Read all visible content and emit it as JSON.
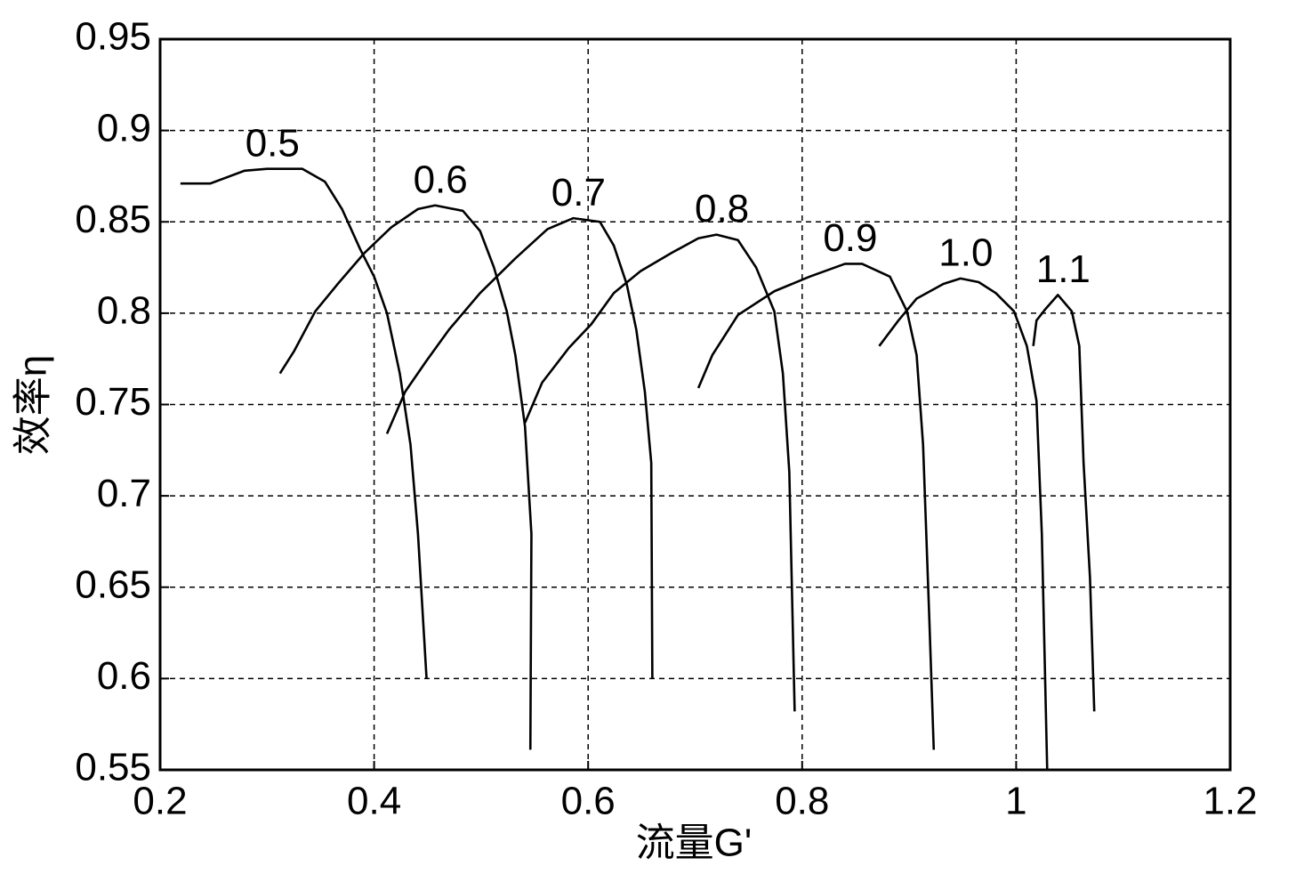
{
  "chart_data": {
    "type": "line",
    "xlabel": "流量G'",
    "ylabel": "效率η",
    "xlim": [
      0.2,
      1.2
    ],
    "xticks": [
      0.2,
      0.4,
      0.6,
      0.8,
      1,
      1.2
    ],
    "ylim": [
      0.55,
      0.95
    ],
    "yticks": [
      0.55,
      0.6,
      0.65,
      0.7,
      0.75,
      0.8,
      0.85,
      0.9,
      0.95
    ],
    "grid": true,
    "series": [
      {
        "name": "0.5",
        "color": "#000000",
        "x": [
          0.219,
          0.247,
          0.279,
          0.3,
          0.333,
          0.354,
          0.37,
          0.387,
          0.4,
          0.412,
          0.424,
          0.434,
          0.441,
          0.449
        ],
        "values": [
          0.871,
          0.871,
          0.878,
          0.879,
          0.879,
          0.872,
          0.857,
          0.835,
          0.82,
          0.8,
          0.767,
          0.728,
          0.679,
          0.6
        ]
      },
      {
        "name": "0.6",
        "color": "#000000",
        "x": [
          0.312,
          0.325,
          0.345,
          0.366,
          0.391,
          0.416,
          0.441,
          0.457,
          0.483,
          0.499,
          0.512,
          0.524,
          0.532,
          0.541,
          0.547,
          0.546
        ],
        "values": [
          0.767,
          0.779,
          0.801,
          0.816,
          0.833,
          0.847,
          0.857,
          0.859,
          0.856,
          0.845,
          0.825,
          0.801,
          0.777,
          0.738,
          0.679,
          0.561
        ]
      },
      {
        "name": "0.7",
        "color": "#000000",
        "x": [
          0.412,
          0.429,
          0.449,
          0.47,
          0.499,
          0.532,
          0.562,
          0.586,
          0.611,
          0.624,
          0.636,
          0.645,
          0.653,
          0.659,
          0.66
        ],
        "values": [
          0.734,
          0.757,
          0.774,
          0.791,
          0.811,
          0.83,
          0.846,
          0.852,
          0.85,
          0.837,
          0.816,
          0.791,
          0.757,
          0.718,
          0.6
        ]
      },
      {
        "name": "0.8",
        "color": "#000000",
        "x": [
          0.541,
          0.557,
          0.582,
          0.603,
          0.624,
          0.649,
          0.678,
          0.703,
          0.72,
          0.74,
          0.757,
          0.774,
          0.782,
          0.788,
          0.793
        ],
        "values": [
          0.74,
          0.762,
          0.781,
          0.794,
          0.811,
          0.823,
          0.833,
          0.841,
          0.843,
          0.84,
          0.825,
          0.801,
          0.767,
          0.713,
          0.582
        ]
      },
      {
        "name": "0.9",
        "color": "#000000",
        "x": [
          0.703,
          0.716,
          0.74,
          0.774,
          0.807,
          0.84,
          0.856,
          0.882,
          0.898,
          0.907,
          0.913,
          0.919,
          0.923
        ],
        "values": [
          0.759,
          0.777,
          0.799,
          0.812,
          0.82,
          0.827,
          0.827,
          0.82,
          0.801,
          0.777,
          0.728,
          0.63,
          0.561
        ]
      },
      {
        "name": "1.0",
        "color": "#000000",
        "x": [
          0.872,
          0.89,
          0.907,
          0.932,
          0.948,
          0.965,
          0.981,
          0.998,
          1.01,
          1.019,
          1.024,
          1.029
        ],
        "values": [
          0.782,
          0.796,
          0.808,
          0.816,
          0.819,
          0.817,
          0.811,
          0.801,
          0.782,
          0.752,
          0.679,
          0.55
        ]
      },
      {
        "name": "1.1",
        "color": "#000000",
        "x": [
          1.016,
          1.019,
          1.027,
          1.039,
          1.052,
          1.059,
          1.063,
          1.069,
          1.073
        ],
        "values": [
          0.782,
          0.796,
          0.802,
          0.81,
          0.801,
          0.782,
          0.718,
          0.655,
          0.582
        ]
      }
    ]
  }
}
